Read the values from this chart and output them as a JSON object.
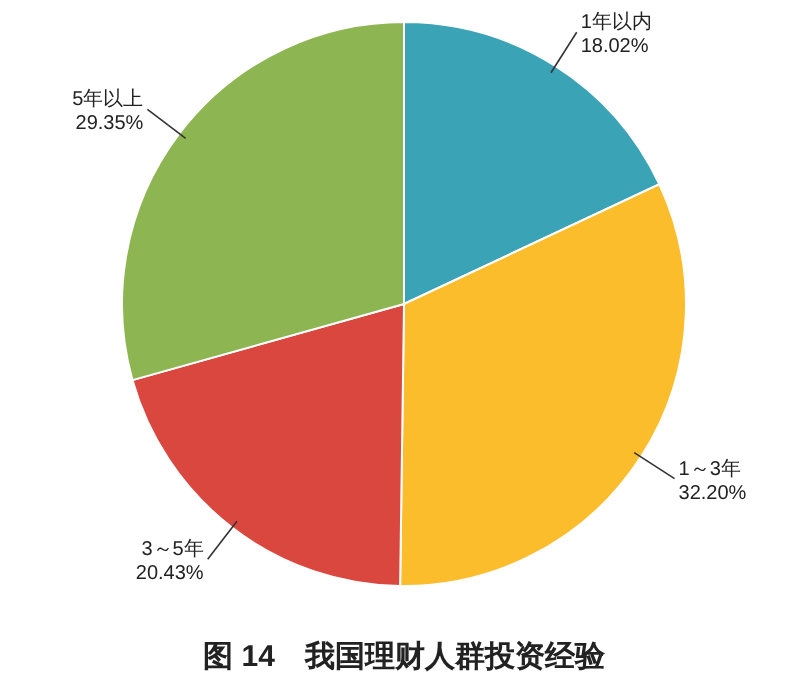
{
  "chart_data": {
    "type": "pie",
    "title": "图 14　我国理财人群投资经验",
    "categories": [
      "1年以内",
      "1～3年",
      "3～5年",
      "5年以上"
    ],
    "values": [
      18.02,
      32.2,
      20.43,
      29.35
    ],
    "value_labels": [
      "18.02%",
      "32.20%",
      "20.43%",
      "29.35%"
    ],
    "colors": [
      "#3aa3b5",
      "#fbbd2c",
      "#d9473f",
      "#8db552"
    ]
  }
}
